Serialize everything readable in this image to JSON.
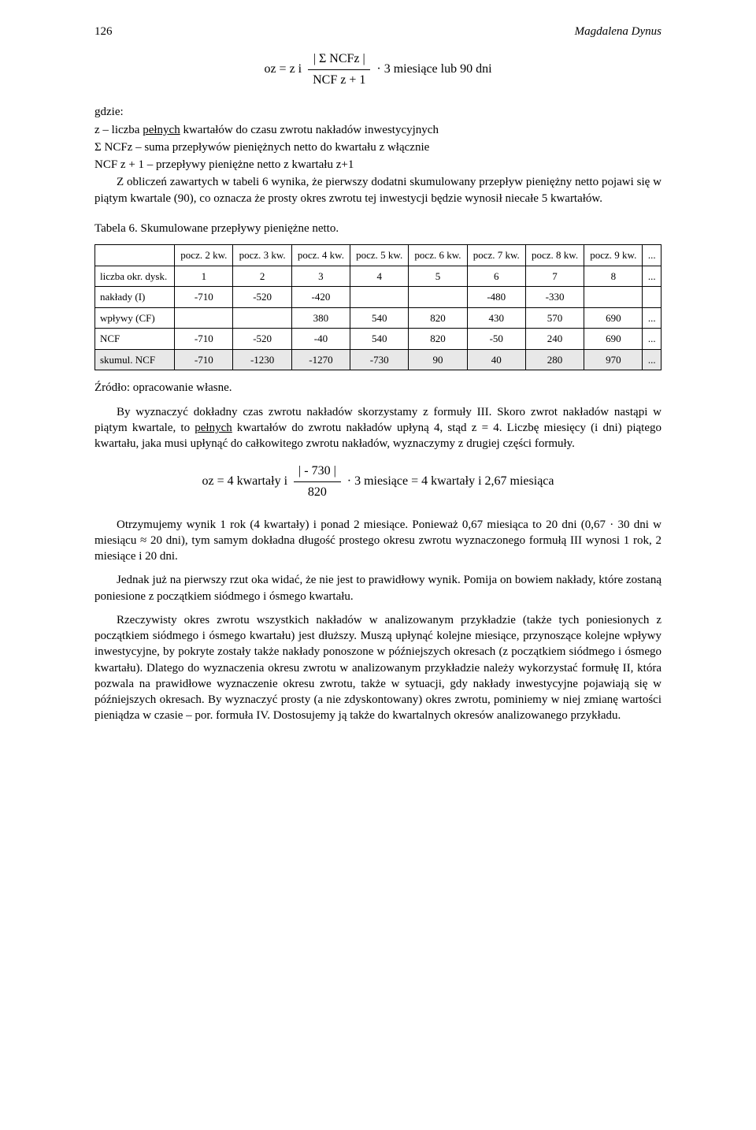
{
  "header": {
    "page": "126",
    "author": "Magdalena Dynus"
  },
  "formula_top": {
    "prefix": "oz  =  z  i",
    "num": "| Σ NCFz |",
    "den": "NCF z + 1",
    "suffix": "· 3 miesiące lub 90 dni"
  },
  "where": {
    "gdzie": "gdzie:",
    "z": "z – liczba ",
    "z_u": "pełnych",
    "z_after": " kwartałów do czasu zwrotu nakładów inwestycyjnych",
    "sum": "Σ NCFz – suma przepływów pieniężnych netto do kwartału z włącznie",
    "ncf": "NCF z + 1 – przepływy pieniężne netto z kwartału z+1"
  },
  "para1": "Z obliczeń zawartych w tabeli 6 wynika, że pierwszy dodatni skumulowany przepływ pieniężny netto pojawi się w piątym kwartale (90), co oznacza że prosty okres zwrotu tej inwestycji będzie wynosił niecałe 5 kwartałów.",
  "table_caption": "Tabela 6. Skumulowane przepływy pieniężne netto.",
  "table": {
    "head": [
      "",
      "pocz. 2 kw.",
      "pocz. 3 kw.",
      "pocz. 4 kw.",
      "pocz. 5 kw.",
      "pocz. 6 kw.",
      "pocz. 7 kw.",
      "pocz. 8 kw.",
      "pocz. 9 kw.",
      "..."
    ],
    "rows": [
      {
        "label": "liczba okr. dysk.",
        "cells": [
          "1",
          "2",
          "3",
          "4",
          "5",
          "6",
          "7",
          "8",
          "..."
        ]
      },
      {
        "label": "nakłady (I)",
        "cells": [
          "-710",
          "-520",
          "-420",
          "",
          "",
          "-480",
          "-330",
          "",
          ""
        ]
      },
      {
        "label": "wpływy (CF)",
        "cells": [
          "",
          "",
          "380",
          "540",
          "820",
          "430",
          "570",
          "690",
          "..."
        ]
      },
      {
        "label": "NCF",
        "cells": [
          "-710",
          "-520",
          "-40",
          "540",
          "820",
          "-50",
          "240",
          "690",
          "..."
        ]
      },
      {
        "label": "skumul. NCF",
        "cells": [
          "-710",
          "-1230",
          "-1270",
          "-730",
          "90",
          "40",
          "280",
          "970",
          "..."
        ],
        "hl": true
      }
    ]
  },
  "src": "Źródło: opracowanie własne.",
  "para2_pre": "By wyznaczyć dokładny czas zwrotu nakładów skorzystamy z formuły III. Skoro zwrot nakładów nastąpi w piątym kwartale, to ",
  "para2_u": "pełnych",
  "para2_post": " kwartałów do zwrotu nakładów upłyną 4, stąd z = 4. Liczbę miesięcy (i dni) piątego kwartału, jaka musi upłynąć do całkowitego zwrotu nakładów, wyznaczymy z drugiej części formuły.",
  "formula_mid": {
    "prefix": "oz  =  4 kwartały  i",
    "num": "| - 730 |",
    "den": "820",
    "suffix": "· 3 miesiące = 4 kwartały i 2,67 miesiąca"
  },
  "para3": "Otrzymujemy wynik 1 rok (4 kwartały) i ponad 2 miesiące. Ponieważ 0,67 miesiąca to 20 dni (0,67 · 30 dni w miesiącu ≈ 20 dni), tym samym dokładna długość prostego okresu zwrotu wyznaczonego formułą III wynosi 1 rok, 2 miesiące i 20 dni.",
  "para4": "Jednak już na pierwszy rzut oka widać, że nie jest to prawidłowy wynik. Pomija on bowiem nakłady, które zostaną poniesione z początkiem siódmego i ósmego kwartału.",
  "para5": "Rzeczywisty okres zwrotu wszystkich nakładów w analizowanym przykładzie (także tych poniesionych z początkiem siódmego i ósmego kwartału) jest dłuższy. Muszą upłynąć kolejne miesiące, przynoszące kolejne wpływy inwestycyjne, by pokryte zostały także nakłady ponoszone w późniejszych okresach (z początkiem siódmego i ósmego kwartału). Dlatego do wyznaczenia okresu zwrotu w analizowanym przykładzie należy wykorzystać formułę II, która pozwala na prawidłowe wyznaczenie okresu zwrotu, także w sytuacji, gdy nakłady inwestycyjne pojawiają się w późniejszych okresach. By wyznaczyć prosty (a nie zdyskontowany) okres zwrotu, pominiemy w niej zmianę wartości pieniądza w czasie – por. formuła IV. Dostosujemy ją także do kwartalnych okresów analizowanego przykładu."
}
